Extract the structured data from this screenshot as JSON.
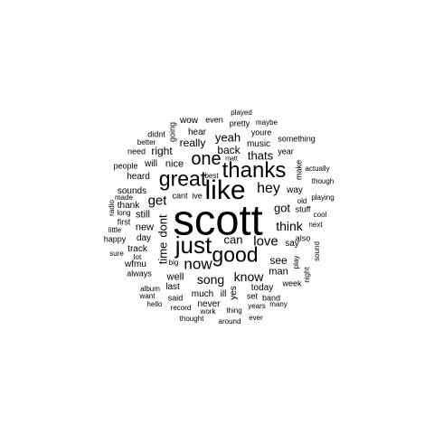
{
  "word_cloud": {
    "text_color": "#000000",
    "background_color": "#ffffff",
    "words": [
      {
        "text": "scott"
      },
      {
        "text": "like"
      },
      {
        "text": "thanks"
      },
      {
        "text": "great"
      },
      {
        "text": "good"
      },
      {
        "text": "just"
      },
      {
        "text": "one"
      },
      {
        "text": "now"
      },
      {
        "text": "hey"
      },
      {
        "text": "love"
      },
      {
        "text": "know"
      },
      {
        "text": "song"
      },
      {
        "text": "think"
      },
      {
        "text": "time"
      },
      {
        "text": "dont"
      },
      {
        "text": "can"
      },
      {
        "text": "got"
      },
      {
        "text": "get"
      },
      {
        "text": "thats"
      },
      {
        "text": "yeah"
      },
      {
        "text": "back"
      },
      {
        "text": "really"
      },
      {
        "text": "see"
      },
      {
        "text": "man"
      },
      {
        "text": "right"
      },
      {
        "text": "nice"
      },
      {
        "text": "well"
      },
      {
        "text": "still"
      },
      {
        "text": "new"
      },
      {
        "text": "music"
      },
      {
        "text": "say"
      },
      {
        "text": "much"
      },
      {
        "text": "hear"
      },
      {
        "text": "sounds"
      },
      {
        "text": "will"
      },
      {
        "text": "heard"
      },
      {
        "text": "thank"
      },
      {
        "text": "day"
      },
      {
        "text": "track"
      },
      {
        "text": "today"
      },
      {
        "text": "way"
      },
      {
        "text": "wow"
      },
      {
        "text": "youre"
      },
      {
        "text": "never"
      },
      {
        "text": "last"
      },
      {
        "text": "ill"
      },
      {
        "text": "yes"
      },
      {
        "text": "band"
      },
      {
        "text": "set"
      },
      {
        "text": "wfmu"
      },
      {
        "text": "first"
      },
      {
        "text": "also"
      },
      {
        "text": "stuff"
      },
      {
        "text": "year"
      },
      {
        "text": "people"
      },
      {
        "text": "need"
      },
      {
        "text": "even"
      },
      {
        "text": "pretty"
      },
      {
        "text": "week"
      },
      {
        "text": "said"
      },
      {
        "text": "always"
      },
      {
        "text": "make"
      },
      {
        "text": "something"
      },
      {
        "text": "didnt"
      },
      {
        "text": "going"
      },
      {
        "text": "better"
      },
      {
        "text": "played"
      },
      {
        "text": "maybe"
      },
      {
        "text": "cant"
      },
      {
        "text": "ive"
      },
      {
        "text": "old"
      },
      {
        "text": "next"
      },
      {
        "text": "cool"
      },
      {
        "text": "playing"
      },
      {
        "text": "actually"
      },
      {
        "text": "though"
      },
      {
        "text": "made"
      },
      {
        "text": "long"
      },
      {
        "text": "radio"
      },
      {
        "text": "happy"
      },
      {
        "text": "little"
      },
      {
        "text": "sure"
      },
      {
        "text": "lot"
      },
      {
        "text": "big"
      },
      {
        "text": "album"
      },
      {
        "text": "want"
      },
      {
        "text": "hello"
      },
      {
        "text": "record"
      },
      {
        "text": "work"
      },
      {
        "text": "thing"
      },
      {
        "text": "years"
      },
      {
        "text": "many"
      },
      {
        "text": "thought"
      },
      {
        "text": "around"
      },
      {
        "text": "ever"
      },
      {
        "text": "night"
      },
      {
        "text": "play"
      },
      {
        "text": "sound"
      },
      {
        "text": "best"
      },
      {
        "text": "matt"
      }
    ]
  }
}
